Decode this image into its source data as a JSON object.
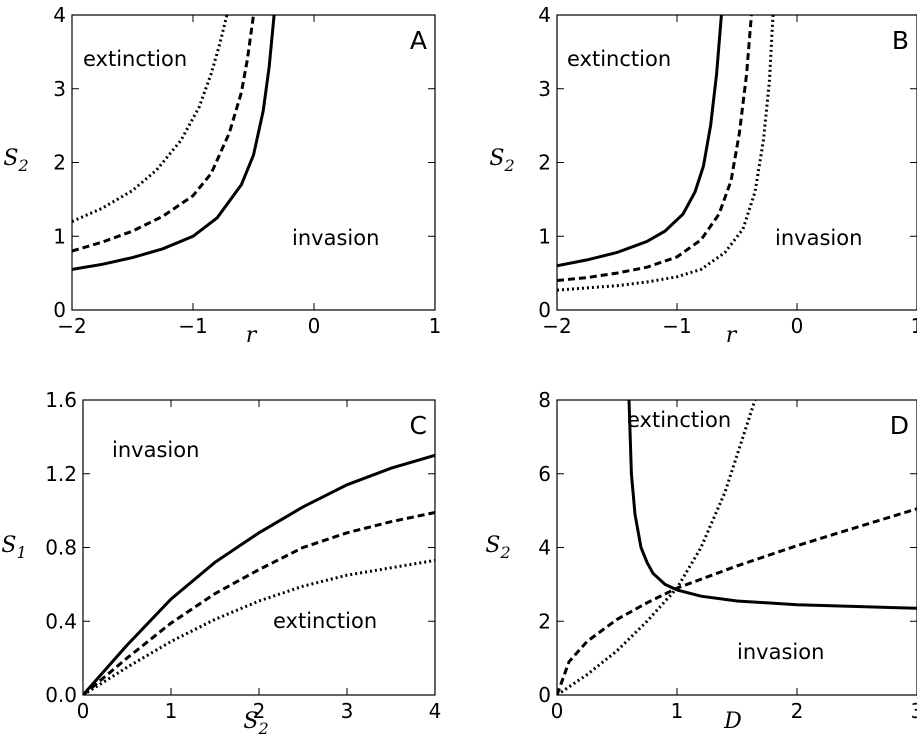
{
  "chart_data": [
    {
      "panel": "A",
      "type": "line",
      "xlabel": "r",
      "ylabel": "S2",
      "xlim": [
        -2,
        1
      ],
      "ylim": [
        0,
        4
      ],
      "xticks": [
        "−2",
        "−1",
        "0",
        "1"
      ],
      "yticks": [
        "0",
        "1",
        "2",
        "3",
        "4"
      ],
      "annotations": [
        "extinction",
        "invasion"
      ],
      "series": [
        {
          "style": "solid",
          "x": [
            -2.0,
            -1.75,
            -1.5,
            -1.25,
            -1.0,
            -0.8,
            -0.6,
            -0.5,
            -0.42,
            -0.37,
            -0.33
          ],
          "y": [
            0.55,
            0.62,
            0.71,
            0.83,
            1.0,
            1.25,
            1.7,
            2.1,
            2.7,
            3.3,
            4.0
          ]
        },
        {
          "style": "dashed",
          "x": [
            -2.0,
            -1.75,
            -1.5,
            -1.25,
            -1.0,
            -0.85,
            -0.7,
            -0.6,
            -0.55,
            -0.5
          ],
          "y": [
            0.8,
            0.92,
            1.07,
            1.27,
            1.55,
            1.85,
            2.4,
            2.95,
            3.4,
            4.0
          ]
        },
        {
          "style": "dotted",
          "x": [
            -2.0,
            -1.75,
            -1.5,
            -1.3,
            -1.1,
            -0.95,
            -0.85,
            -0.78,
            -0.72
          ],
          "y": [
            1.2,
            1.38,
            1.62,
            1.9,
            2.3,
            2.75,
            3.2,
            3.6,
            4.0
          ]
        }
      ]
    },
    {
      "panel": "B",
      "type": "line",
      "xlabel": "r",
      "ylabel": "S2",
      "xlim": [
        -2,
        1
      ],
      "ylim": [
        0,
        4
      ],
      "xticks": [
        "−2",
        "−1",
        "0",
        "1"
      ],
      "yticks": [
        "0",
        "1",
        "2",
        "3",
        "4"
      ],
      "annotations": [
        "extinction",
        "invasion"
      ],
      "series": [
        {
          "style": "solid",
          "x": [
            -2.0,
            -1.75,
            -1.5,
            -1.25,
            -1.1,
            -0.95,
            -0.85,
            -0.78,
            -0.72,
            -0.67,
            -0.63
          ],
          "y": [
            0.6,
            0.68,
            0.78,
            0.93,
            1.07,
            1.3,
            1.6,
            1.95,
            2.5,
            3.2,
            4.0
          ]
        },
        {
          "style": "dashed",
          "x": [
            -2.0,
            -1.75,
            -1.5,
            -1.25,
            -1.0,
            -0.8,
            -0.65,
            -0.55,
            -0.48,
            -0.42,
            -0.38
          ],
          "y": [
            0.4,
            0.44,
            0.5,
            0.58,
            0.72,
            0.95,
            1.3,
            1.75,
            2.4,
            3.2,
            4.0
          ]
        },
        {
          "style": "dotted",
          "x": [
            -2.0,
            -1.75,
            -1.5,
            -1.25,
            -1.0,
            -0.8,
            -0.6,
            -0.45,
            -0.35,
            -0.28,
            -0.23,
            -0.2
          ],
          "y": [
            0.27,
            0.3,
            0.33,
            0.38,
            0.45,
            0.55,
            0.78,
            1.1,
            1.6,
            2.3,
            3.1,
            4.0
          ]
        }
      ]
    },
    {
      "panel": "C",
      "type": "line",
      "xlabel": "S2",
      "ylabel": "S1",
      "xlim": [
        0,
        4
      ],
      "ylim": [
        0,
        1.6
      ],
      "xticks": [
        "0",
        "1",
        "2",
        "3",
        "4"
      ],
      "yticks": [
        "0.0",
        "0.4",
        "0.8",
        "1.2",
        "1.6"
      ],
      "annotations": [
        "invasion",
        "extinction"
      ],
      "series": [
        {
          "style": "solid",
          "x": [
            0,
            0.5,
            1,
            1.5,
            2,
            2.5,
            3,
            3.5,
            4
          ],
          "y": [
            0,
            0.27,
            0.52,
            0.72,
            0.88,
            1.02,
            1.14,
            1.23,
            1.3
          ]
        },
        {
          "style": "dashed",
          "x": [
            0,
            0.5,
            1,
            1.5,
            2,
            2.5,
            3,
            3.5,
            4
          ],
          "y": [
            0,
            0.2,
            0.39,
            0.55,
            0.68,
            0.8,
            0.88,
            0.94,
            0.99
          ]
        },
        {
          "style": "dotted",
          "x": [
            0,
            0.5,
            1,
            1.5,
            2,
            2.5,
            3,
            3.5,
            4
          ],
          "y": [
            0,
            0.15,
            0.29,
            0.41,
            0.51,
            0.59,
            0.65,
            0.69,
            0.73
          ]
        }
      ]
    },
    {
      "panel": "D",
      "type": "line",
      "xlabel": "D",
      "ylabel": "S2",
      "xlim": [
        0,
        3
      ],
      "ylim": [
        0,
        8
      ],
      "xticks": [
        "0",
        "1",
        "2",
        "3"
      ],
      "yticks": [
        "0",
        "2",
        "4",
        "6",
        "8"
      ],
      "annotations": [
        "extinction",
        "invasion"
      ],
      "series": [
        {
          "style": "solid",
          "x": [
            0.6,
            0.62,
            0.65,
            0.7,
            0.75,
            0.8,
            0.9,
            1.0,
            1.2,
            1.5,
            2.0,
            2.5,
            3.0
          ],
          "y": [
            8.0,
            6.0,
            4.9,
            4.0,
            3.6,
            3.3,
            3.0,
            2.85,
            2.68,
            2.55,
            2.45,
            2.4,
            2.35
          ]
        },
        {
          "style": "dashed",
          "x": [
            0,
            0.1,
            0.25,
            0.5,
            0.75,
            1.0,
            1.5,
            2.0,
            2.5,
            3.0
          ],
          "y": [
            0,
            0.9,
            1.45,
            2.05,
            2.5,
            2.9,
            3.5,
            4.05,
            4.55,
            5.05
          ]
        },
        {
          "style": "dotted",
          "x": [
            0,
            0.25,
            0.5,
            0.75,
            1.0,
            1.2,
            1.4,
            1.55,
            1.65
          ],
          "y": [
            0,
            0.55,
            1.2,
            2.0,
            2.9,
            4.0,
            5.5,
            7.0,
            8.0
          ]
        }
      ]
    }
  ]
}
